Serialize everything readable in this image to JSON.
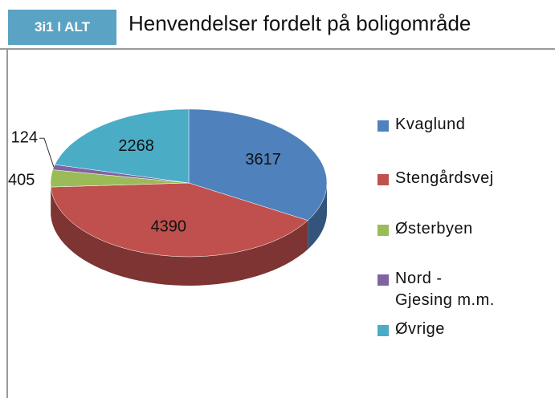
{
  "badge": "3i1 I ALT",
  "chart_data": {
    "type": "pie",
    "title": "Henvendelser fordelt på boligområde",
    "categories": [
      "Kvaglund",
      "Stengårdsvej",
      "Østerbyen",
      "Nord - Gjesing m.m.",
      "Øvrige"
    ],
    "values": [
      3617,
      4390,
      405,
      124,
      2268
    ],
    "colors": [
      "#4f81bd",
      "#c0504d",
      "#9bbb59",
      "#8064a2",
      "#4bacc6"
    ],
    "legend": "right"
  }
}
